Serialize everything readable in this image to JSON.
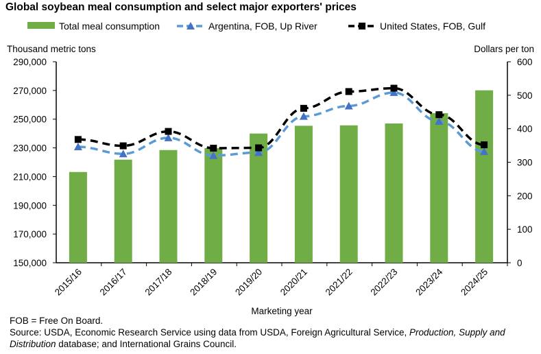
{
  "chart_data": {
    "type": "bar+line",
    "title": "Global soybean meal consumption and select major exporters' prices",
    "xlabel": "Marketing year",
    "ylabel_left": "Thousand metric tons",
    "ylabel_right": "Dollars per ton",
    "ylim_left": [
      150000,
      290000
    ],
    "ylim_right": [
      0,
      600
    ],
    "yticks_left": [
      "150,000",
      "170,000",
      "190,000",
      "210,000",
      "230,000",
      "250,000",
      "270,000",
      "290,000"
    ],
    "yticks_right": [
      "0",
      "100",
      "200",
      "300",
      "400",
      "500",
      "600"
    ],
    "categories": [
      "2015/16",
      "2016/17",
      "2017/18",
      "2018/19",
      "2019/20",
      "2020/21",
      "2021/22",
      "2022/23",
      "2023/24",
      "2024/25"
    ],
    "series": [
      {
        "name": "Total meal consumption",
        "type": "bar",
        "axis": "left",
        "color": "#70AD47",
        "values": [
          213200,
          221800,
          228500,
          229800,
          240000,
          245400,
          245700,
          247000,
          254200,
          270100
        ]
      },
      {
        "name": "Argentina, FOB, Up River",
        "type": "line",
        "axis": "right",
        "color": "#5B9BD5",
        "marker": "triangle",
        "values": [
          346,
          325,
          373,
          320,
          329,
          437,
          468,
          508,
          422,
          332
        ]
      },
      {
        "name": "United States, FOB, Gulf",
        "type": "line",
        "axis": "right",
        "color": "#000000",
        "marker": "square",
        "values": [
          368,
          349,
          392,
          342,
          343,
          461,
          511,
          521,
          442,
          352
        ]
      }
    ],
    "legend": "top",
    "grid": false
  },
  "notes": {
    "fob": "FOB = Free On Board.",
    "source_a": "Source: USDA, Economic Research Service using data from USDA, Foreign Agricultural Service, ",
    "source_b": "Production,",
    "source_c": "Supply and Distribution",
    "source_d": " database; and International Grains Council."
  }
}
